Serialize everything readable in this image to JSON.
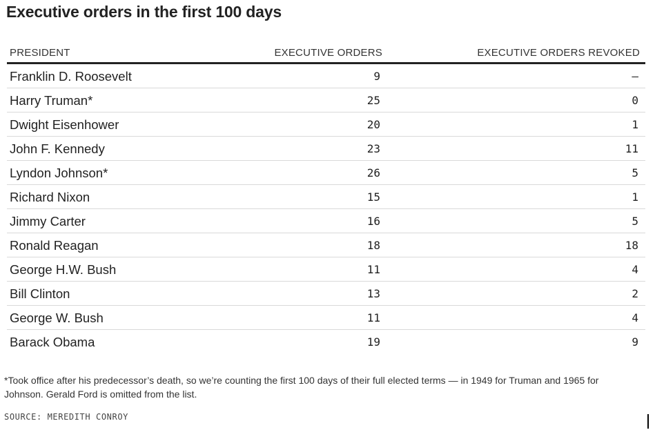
{
  "title": "Executive orders in the first 100 days",
  "chart_data": {
    "type": "table",
    "columns": [
      "PRESIDENT",
      "EXECUTIVE ORDERS",
      "EXECUTIVE ORDERS REVOKED"
    ],
    "rows": [
      {
        "president": "Franklin D. Roosevelt",
        "orders": "9",
        "revoked": "–"
      },
      {
        "president": "Harry Truman*",
        "orders": "25",
        "revoked": "0"
      },
      {
        "president": "Dwight Eisenhower",
        "orders": "20",
        "revoked": "1"
      },
      {
        "president": "John F. Kennedy",
        "orders": "23",
        "revoked": "11"
      },
      {
        "president": "Lyndon Johnson*",
        "orders": "26",
        "revoked": "5"
      },
      {
        "president": "Richard Nixon",
        "orders": "15",
        "revoked": "1"
      },
      {
        "president": "Jimmy Carter",
        "orders": "16",
        "revoked": "5"
      },
      {
        "president": "Ronald Reagan",
        "orders": "18",
        "revoked": "18"
      },
      {
        "president": "George H.W. Bush",
        "orders": "11",
        "revoked": "4"
      },
      {
        "president": "Bill Clinton",
        "orders": "13",
        "revoked": "2"
      },
      {
        "president": "George W. Bush",
        "orders": "11",
        "revoked": "4"
      },
      {
        "president": "Barack Obama",
        "orders": "19",
        "revoked": "9"
      }
    ]
  },
  "footnote": "*Took office after his predecessor’s death, so we’re counting the first 100 days of their full elected terms — in 1949 for Truman and 1965 for Johnson. Gerald Ford is omitted from the list.",
  "source": "SOURCE: MEREDITH CONROY"
}
